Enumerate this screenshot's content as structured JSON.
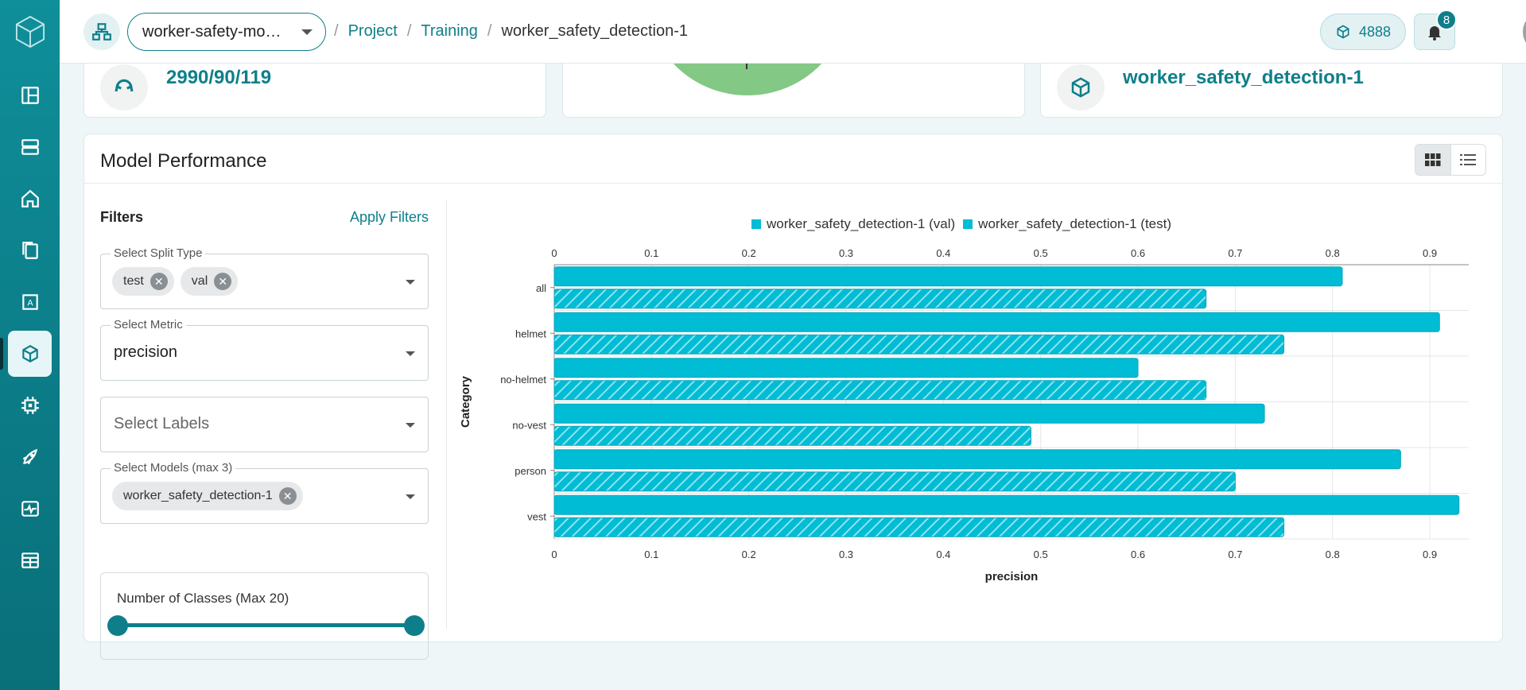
{
  "topbar": {
    "project_select": "worker-safety-mo…",
    "breadcrumbs": [
      "Project",
      "Training",
      "worker_safety_detection-1"
    ],
    "credits": "4888",
    "notifications": "8"
  },
  "cards": {
    "split_counts": "2990/90/119",
    "model_name": "worker_safety_detection-1"
  },
  "panel": {
    "title": "Model Performance",
    "filters_title": "Filters",
    "apply_label": "Apply Filters",
    "split_label": "Select Split Type",
    "split_chips": [
      "test",
      "val"
    ],
    "metric_label": "Select Metric",
    "metric_value": "precision",
    "labels_placeholder": "Select Labels",
    "models_label": "Select Models (max 3)",
    "model_chips": [
      "worker_safety_detection-1"
    ],
    "classes_label": "Number of Classes (Max 20)"
  },
  "colors": {
    "accent": "#0e7f8a",
    "bar": "#00bcd4"
  },
  "chart_data": {
    "type": "bar",
    "orientation": "horizontal",
    "categories": [
      "all",
      "helmet",
      "no-helmet",
      "no-vest",
      "person",
      "vest"
    ],
    "series": [
      {
        "name": "worker_safety_detection-1 (val)",
        "values": [
          0.81,
          0.91,
          0.6,
          0.73,
          0.87,
          0.93
        ],
        "pattern": "solid"
      },
      {
        "name": "worker_safety_detection-1 (test)",
        "values": [
          0.67,
          0.75,
          0.67,
          0.49,
          0.7,
          0.75
        ],
        "pattern": "hatched"
      }
    ],
    "xlabel": "precision",
    "ylabel": "Category",
    "xlim": [
      0,
      0.94
    ],
    "xticks": [
      "0",
      "0.1",
      "0.2",
      "0.3",
      "0.4",
      "0.5",
      "0.6",
      "0.7",
      "0.8",
      "0.9"
    ],
    "grid": true,
    "legend": "top"
  }
}
